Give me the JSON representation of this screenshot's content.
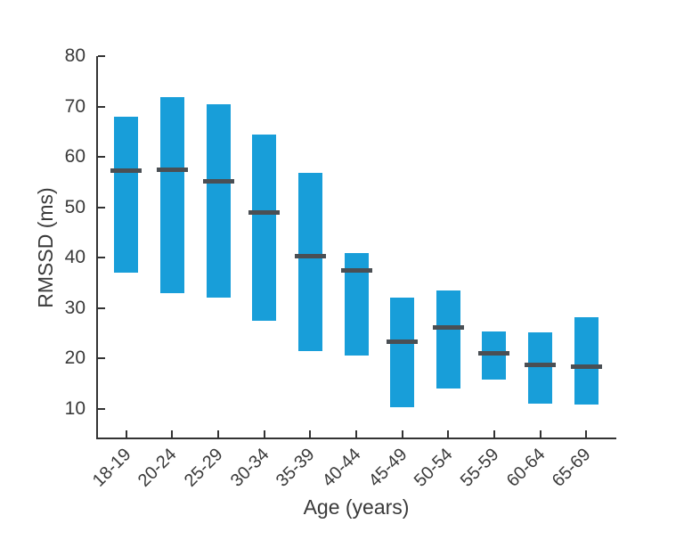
{
  "chart_data": {
    "type": "bar",
    "variant": "floating-range-bars-with-median-dash",
    "title": "",
    "xlabel": "Age (years)",
    "ylabel": "RMSSD (ms)",
    "categories": [
      "18-19",
      "20-24",
      "25-29",
      "30-34",
      "35-39",
      "40-44",
      "45-49",
      "50-54",
      "55-59",
      "60-64",
      "65-69"
    ],
    "series": [
      {
        "name": "range_low",
        "values": [
          37,
          33,
          32,
          27.5,
          21.5,
          20.5,
          10.3,
          14,
          15.8,
          11,
          10.8
        ]
      },
      {
        "name": "range_high",
        "values": [
          68,
          71.8,
          70.4,
          64.5,
          56.8,
          41,
          32,
          33.4,
          25.4,
          25.2,
          28.2
        ]
      },
      {
        "name": "median",
        "values": [
          57.2,
          57.5,
          55.2,
          49,
          40.3,
          37.5,
          23.4,
          26.1,
          21.1,
          18.7,
          18.4
        ]
      }
    ],
    "yticks": [
      10,
      20,
      30,
      40,
      50,
      60,
      70,
      80
    ],
    "ylim": [
      4.3,
      80
    ],
    "grid": false,
    "legend": "none",
    "bar_color": "#189ED9",
    "median_color": "#4A4F54",
    "axis_color": "#333333",
    "text_color": "#3A3A3A"
  }
}
